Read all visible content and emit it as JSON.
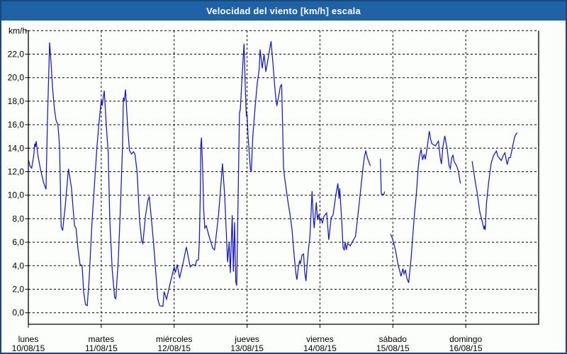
{
  "window": {
    "title": "Velocidad del viento [km/h] escala",
    "title_bar_color": "#1f63a6",
    "border_color": "#17497d",
    "background_color": "#fcfefb"
  },
  "chart_data": {
    "type": "line",
    "title": "Velocidad del viento [km/h] escala",
    "ylabel": "km/h",
    "xlabel": "",
    "grid": "dashed",
    "legend": "none",
    "line_color": "#1616cd",
    "grid_color": "#000000",
    "ylim": [
      0,
      24
    ],
    "x_hours_total": 168,
    "y_axis": {
      "min": 0,
      "max": 24,
      "tick_step": 2,
      "unit_label": "km/h",
      "tick_labels": [
        "0,0",
        "2,0",
        "4,0",
        "6,0",
        "8,0",
        "10,0",
        "12,0",
        "14,0",
        "16,0",
        "18,0",
        "20,0",
        "22,0"
      ]
    },
    "x_axis": {
      "days": [
        {
          "name": "lunes",
          "date": "10/08/15"
        },
        {
          "name": "martes",
          "date": "11/08/15"
        },
        {
          "name": "miércoles",
          "date": "12/08/15"
        },
        {
          "name": "jueves",
          "date": "13/08/15"
        },
        {
          "name": "viernes",
          "date": "14/08/15"
        },
        {
          "name": "sábado",
          "date": "15/08/15"
        },
        {
          "name": "domingo",
          "date": "16/08/15"
        }
      ]
    },
    "series": [
      {
        "name": "velocidad del viento",
        "unit": "km/h",
        "segments": [
          [
            [
              0,
              13.1
            ],
            [
              0.5,
              12.5
            ],
            [
              1.1,
              12.3
            ],
            [
              1.8,
              13.4
            ],
            [
              2.1,
              14.4
            ],
            [
              2.35,
              14.1
            ],
            [
              2.6,
              14.6
            ],
            [
              3.2,
              13.3
            ],
            [
              4,
              12.2
            ],
            [
              5,
              11.1
            ],
            [
              5.8,
              10.5
            ],
            [
              6.3,
              16.5
            ],
            [
              7,
              23.0
            ],
            [
              7.5,
              21.2
            ],
            [
              8,
              19.0
            ],
            [
              8.6,
              17.3
            ],
            [
              9.1,
              16.4
            ],
            [
              9.7,
              16.0
            ],
            [
              10.1,
              14.8
            ],
            [
              10.3,
              14.0
            ],
            [
              10.8,
              7.3
            ],
            [
              11.3,
              7.0
            ],
            [
              12.1,
              9.0
            ],
            [
              13.2,
              12.25
            ],
            [
              14.2,
              10.6
            ],
            [
              15.2,
              7.4
            ],
            [
              15.7,
              7.2
            ],
            [
              16.3,
              5.5
            ],
            [
              17,
              4.1
            ],
            [
              17.7,
              4.0
            ],
            [
              18.2,
              1.8
            ],
            [
              18.8,
              0.7
            ],
            [
              19.4,
              0.6
            ],
            [
              20,
              2.8
            ],
            [
              21,
              7.9
            ],
            [
              22.6,
              14.2
            ],
            [
              23.3,
              16.3
            ],
            [
              24,
              18.1
            ],
            [
              24.3,
              17.6
            ],
            [
              25,
              18.9
            ],
            [
              25.7,
              15.8
            ],
            [
              26.3,
              13.6
            ],
            [
              26.8,
              7.9
            ],
            [
              27.6,
              3.7
            ],
            [
              28.4,
              1.3
            ],
            [
              28.8,
              1.2
            ],
            [
              29.6,
              4.5
            ],
            [
              30.3,
              8.9
            ],
            [
              31,
              14.2
            ],
            [
              31.3,
              18.3
            ],
            [
              31.6,
              18.0
            ],
            [
              32,
              19.0
            ],
            [
              32.7,
              15.8
            ],
            [
              33.3,
              13.8
            ],
            [
              34,
              13.5
            ],
            [
              34.6,
              13.7
            ],
            [
              35.1,
              13.5
            ],
            [
              35.8,
              12.0
            ],
            [
              36.6,
              7.9
            ],
            [
              37.3,
              6.1
            ],
            [
              37.7,
              5.9
            ],
            [
              38.5,
              8.1
            ],
            [
              39.3,
              9.5
            ],
            [
              39.8,
              9.9
            ],
            [
              40.4,
              8.3
            ],
            [
              41.2,
              6.0
            ],
            [
              42,
              3.3
            ],
            [
              42.6,
              1.2
            ],
            [
              43.2,
              0.6
            ],
            [
              44.3,
              0.55
            ],
            [
              44.7,
              1.8
            ],
            [
              45.5,
              1.15
            ],
            [
              46.7,
              2.5
            ],
            [
              48,
              3.9
            ],
            [
              48.4,
              3.4
            ],
            [
              49,
              4.1
            ],
            [
              49.8,
              2.95
            ],
            [
              51,
              4.3
            ],
            [
              52,
              5.6
            ],
            [
              53.3,
              3.9
            ],
            [
              54.2,
              4.1
            ],
            [
              55,
              4.0
            ],
            [
              55.4,
              4.45
            ],
            [
              56,
              4.5
            ],
            [
              56.3,
              6.1
            ],
            [
              56.6,
              10.1
            ],
            [
              56.8,
              14.35
            ],
            [
              57,
              14.9
            ],
            [
              57.4,
              12.15
            ],
            [
              57.7,
              8.9
            ],
            [
              58.1,
              7.2
            ],
            [
              58.6,
              7.4
            ],
            [
              59.5,
              6.5
            ],
            [
              60.7,
              5.5
            ],
            [
              61.3,
              5.35
            ],
            [
              61.8,
              6.5
            ],
            [
              62.6,
              8.3
            ],
            [
              63.4,
              10.9
            ],
            [
              63.9,
              12.7
            ],
            [
              64.6,
              10.1
            ],
            [
              65.2,
              6.7
            ],
            [
              65.6,
              4.3
            ],
            [
              66.1,
              6.0
            ],
            [
              66.5,
              3.4
            ],
            [
              67.1,
              8.3
            ],
            [
              67.5,
              3.5
            ],
            [
              67.9,
              7.7
            ],
            [
              68.3,
              2.6
            ],
            [
              68.6,
              2.3
            ],
            [
              69.2,
              12.2
            ],
            [
              69.5,
              17.0
            ],
            [
              69.8,
              17.3
            ],
            [
              70.4,
              20.2
            ],
            [
              71,
              22.9
            ],
            [
              71.6,
              17.6
            ],
            [
              71.8,
              16.7
            ],
            [
              72,
              16.9
            ],
            [
              72.3,
              15.2
            ],
            [
              72.7,
              13.6
            ],
            [
              73.1,
              12.2
            ],
            [
              73.4,
              12.0
            ],
            [
              73.9,
              15.0
            ],
            [
              74.7,
              17.6
            ],
            [
              75.4,
              19.6
            ],
            [
              76,
              20.7
            ],
            [
              76.3,
              22.4
            ],
            [
              77,
              20.8
            ],
            [
              77.6,
              22.0
            ],
            [
              78.2,
              20.5
            ],
            [
              79.9,
              23.1
            ],
            [
              80.5,
              21.3
            ],
            [
              80.9,
              20.0
            ],
            [
              81.3,
              18.7
            ],
            [
              81.8,
              17.6
            ],
            [
              82.4,
              18.4
            ],
            [
              83,
              19.3
            ],
            [
              83.4,
              19.4
            ],
            [
              83.7,
              16.0
            ],
            [
              84,
              12.4
            ],
            [
              84.3,
              11.6
            ],
            [
              84.7,
              10.9
            ],
            [
              85.1,
              10.1
            ],
            [
              85.5,
              9.4
            ],
            [
              86,
              8.6
            ],
            [
              86.4,
              7.9
            ],
            [
              86.8,
              7.1
            ],
            [
              87.1,
              6.1
            ],
            [
              87.5,
              4.9
            ],
            [
              87.8,
              4.1
            ],
            [
              88.1,
              3.3
            ],
            [
              88.4,
              2.8
            ],
            [
              88.9,
              3.9
            ],
            [
              89.3,
              4.4
            ],
            [
              89.6,
              4.2
            ],
            [
              90.1,
              4.9
            ],
            [
              90.6,
              5.0
            ],
            [
              91,
              3.4
            ],
            [
              91.4,
              2.7
            ],
            [
              91.8,
              4.1
            ],
            [
              92.2,
              5.3
            ],
            [
              92.7,
              6.5
            ],
            [
              93,
              8.1
            ],
            [
              93.4,
              10.35
            ],
            [
              93.8,
              8.1
            ],
            [
              94.1,
              7.2
            ],
            [
              94.8,
              9.4
            ],
            [
              95.2,
              7.9
            ],
            [
              95.6,
              8.4
            ],
            [
              96,
              7.8
            ],
            [
              96.4,
              8.0
            ],
            [
              96.8,
              7.6
            ],
            [
              97.3,
              8.2
            ],
            [
              98.2,
              8.5
            ],
            [
              98.9,
              6.2
            ],
            [
              99.7,
              8.1
            ],
            [
              100.3,
              8.3
            ],
            [
              101.3,
              10.1
            ],
            [
              101.9,
              11.0
            ],
            [
              102.3,
              9.7
            ],
            [
              102.5,
              10.6
            ],
            [
              103.1,
              8.1
            ],
            [
              103.6,
              5.6
            ],
            [
              104,
              5.3
            ],
            [
              104.3,
              6.0
            ],
            [
              104.7,
              5.35
            ],
            [
              105.1,
              5.9
            ],
            [
              106,
              5.7
            ],
            [
              106.6,
              6.0
            ],
            [
              107.7,
              6.5
            ],
            [
              108.5,
              8.3
            ],
            [
              109.3,
              10.2
            ],
            [
              110.1,
              12.2
            ],
            [
              110.6,
              13.2
            ],
            [
              111.1,
              13.8
            ],
            [
              111.6,
              13.2
            ],
            [
              112.2,
              12.75
            ],
            [
              112.6,
              12.5
            ]
          ],
          [
            [
              115.9,
              13.1
            ],
            [
              116.2,
              10.1
            ],
            [
              117,
              10.05
            ],
            [
              117.3,
              10.3
            ]
          ],
          [
            [
              119.2,
              6.7
            ],
            [
              119.9,
              6.3
            ],
            [
              120.9,
              5.3
            ],
            [
              121.7,
              4.1
            ],
            [
              122.5,
              3.3
            ],
            [
              122.7,
              3.1
            ],
            [
              123.3,
              3.75
            ],
            [
              123.7,
              3.3
            ],
            [
              124.1,
              3.65
            ],
            [
              124.6,
              2.95
            ],
            [
              125.2,
              2.55
            ],
            [
              126,
              4.6
            ],
            [
              126.6,
              6.7
            ],
            [
              127.2,
              8.6
            ],
            [
              127.8,
              10.3
            ],
            [
              128.3,
              12.25
            ],
            [
              128.8,
              13.35
            ],
            [
              129.3,
              13.9
            ],
            [
              129.8,
              13.0
            ],
            [
              130.3,
              13.5
            ],
            [
              130.7,
              13.05
            ],
            [
              131.3,
              14.05
            ],
            [
              132,
              15.45
            ],
            [
              132.4,
              14.8
            ],
            [
              132.8,
              14.4
            ],
            [
              134,
              14.2
            ],
            [
              135,
              14.6
            ],
            [
              135.6,
              13.2
            ],
            [
              136,
              12.65
            ],
            [
              136.5,
              14.15
            ],
            [
              137.1,
              15.05
            ],
            [
              137.9,
              13.9
            ],
            [
              138.5,
              12.5
            ],
            [
              138.9,
              12.25
            ],
            [
              139.4,
              13.2
            ],
            [
              139.8,
              13.4
            ],
            [
              140.2,
              12.85
            ],
            [
              141,
              12.5
            ],
            [
              141.6,
              12.0
            ],
            [
              142.1,
              11.2
            ],
            [
              142.3,
              11.0
            ]
          ],
          [
            [
              146.1,
              12.9
            ],
            [
              146.6,
              12.05
            ],
            [
              147,
              11.35
            ],
            [
              147.8,
              10.15
            ],
            [
              148.6,
              8.6
            ],
            [
              149.2,
              8.0
            ],
            [
              150,
              7.1
            ],
            [
              150.2,
              7.4
            ],
            [
              150.4,
              7.05
            ],
            [
              150.8,
              9.25
            ],
            [
              151.3,
              10.5
            ],
            [
              151.8,
              11.65
            ],
            [
              152.4,
              12.75
            ],
            [
              153.2,
              13.4
            ],
            [
              154.1,
              13.75
            ],
            [
              154.6,
              13.3
            ],
            [
              155.2,
              13.1
            ],
            [
              155.7,
              12.95
            ],
            [
              156.3,
              13.35
            ],
            [
              156.9,
              13.6
            ],
            [
              157.5,
              12.75
            ],
            [
              157.7,
              12.65
            ],
            [
              158.2,
              13.2
            ],
            [
              158.7,
              13.2
            ],
            [
              159.6,
              14.35
            ],
            [
              160.1,
              14.95
            ],
            [
              160.7,
              15.25
            ],
            [
              161,
              15.3
            ]
          ]
        ]
      }
    ]
  }
}
